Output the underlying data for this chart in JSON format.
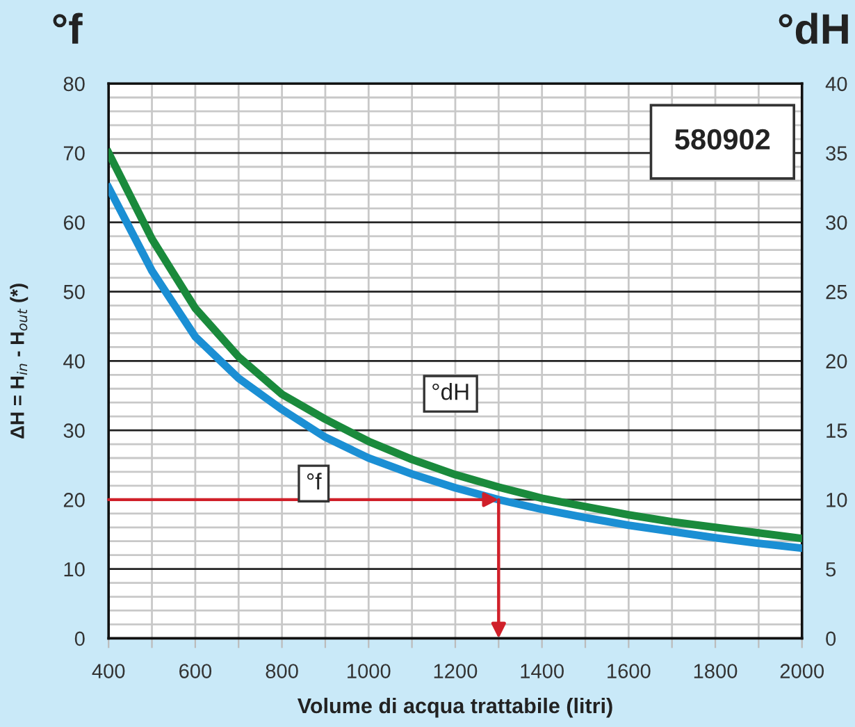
{
  "chart_data": {
    "type": "line",
    "xlabel": "Volume di acqua trattabile (litri)",
    "ylabel": "ΔH = H$_{in}$ - H$_{out}$ (*)",
    "annotations": [
      "°f",
      "°dH",
      "580902"
    ],
    "x": [
      400,
      500,
      600,
      700,
      800,
      900,
      1000,
      1100,
      1200,
      1300,
      1400,
      1500,
      1600,
      1700,
      1800,
      1900,
      2000
    ],
    "series": [
      {
        "name": "°f",
        "color": "#1b8fd4",
        "values": [
          65,
          53,
          43.5,
          37.5,
          33,
          29,
          26,
          23.7,
          21.7,
          20,
          18.6,
          17.4,
          16.3,
          15.4,
          14.5,
          13.7,
          13
        ]
      },
      {
        "name": "°dH",
        "color": "#1a8a3c",
        "axis": "y2",
        "values": [
          35,
          28.8,
          23.8,
          20.3,
          17.6,
          15.8,
          14.2,
          12.9,
          11.8,
          10.9,
          10.1,
          9.5,
          8.9,
          8.4,
          8,
          7.6,
          7.2
        ]
      }
    ],
    "xlim": [
      400,
      2000
    ],
    "xticks": [
      400,
      {
        "value": 500,
        "label": null
      },
      600,
      {
        "value": 700,
        "label": null
      },
      800,
      {
        "value": 900,
        "label": null
      },
      1000,
      {
        "value": 1100,
        "label": null
      },
      1200,
      {
        "value": 1300,
        "label": null
      },
      1400,
      {
        "value": 1500,
        "label": null
      },
      1600,
      {
        "value": 1700,
        "label": null
      },
      1800,
      {
        "value": 1900,
        "label": null
      },
      2000
    ],
    "ylim": [
      0,
      80
    ],
    "yticks": [
      0,
      {
        "value": 2,
        "label": null
      },
      {
        "value": 4,
        "label": null
      },
      {
        "value": 6,
        "label": null
      },
      {
        "value": 8,
        "label": null
      },
      10,
      {
        "value": 12,
        "label": null
      },
      {
        "value": 14,
        "label": null
      },
      {
        "value": 16,
        "label": null
      },
      {
        "value": 18,
        "label": null
      },
      20,
      {
        "value": 22,
        "label": null
      },
      {
        "value": 24,
        "label": null
      },
      {
        "value": 26,
        "label": null
      },
      {
        "value": 28,
        "label": null
      },
      30,
      {
        "value": 32,
        "label": null
      },
      {
        "value": 34,
        "label": null
      },
      {
        "value": 36,
        "label": null
      },
      {
        "value": 38,
        "label": null
      },
      40,
      {
        "value": 42,
        "label": null
      },
      {
        "value": 44,
        "label": null
      },
      {
        "value": 46,
        "label": null
      },
      {
        "value": 48,
        "label": null
      },
      50,
      {
        "value": 52,
        "label": null
      },
      {
        "value": 54,
        "label": null
      },
      {
        "value": 56,
        "label": null
      },
      {
        "value": 58,
        "label": null
      },
      60,
      {
        "value": 62,
        "label": null
      },
      {
        "value": 64,
        "label": null
      },
      {
        "value": 66,
        "label": null
      },
      {
        "value": 68,
        "label": null
      },
      70,
      {
        "value": 72,
        "label": null
      },
      {
        "value": 74,
        "label": null
      },
      {
        "value": 76,
        "label": null
      },
      {
        "value": 78,
        "label": null
      },
      80
    ],
    "y2lim": [
      0,
      40
    ],
    "y2ticks": [
      0,
      5,
      10,
      15,
      20,
      25,
      30,
      35,
      40
    ],
    "grid": true,
    "legend": false,
    "marker": "none",
    "line_style": "solid"
  }
}
